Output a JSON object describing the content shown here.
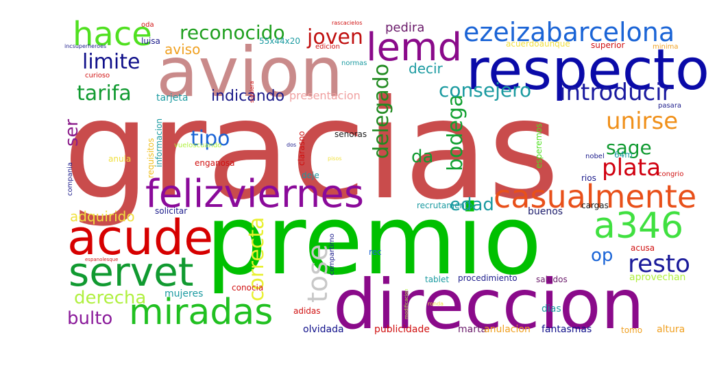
{
  "words": [
    {
      "text": "gracias",
      "color": "#c94c4c"
    },
    {
      "text": "premio",
      "color": "#00c000"
    },
    {
      "text": "avion",
      "color": "#c98a8a"
    },
    {
      "text": "direccion",
      "color": "#8a0a8a"
    },
    {
      "text": "respecto",
      "color": "#0a0aa8"
    },
    {
      "text": "acude",
      "color": "#d60000"
    },
    {
      "text": "felizviernes",
      "color": "#8a0a9a"
    },
    {
      "text": "casualmente",
      "color": "#e8501a"
    },
    {
      "text": "servet",
      "color": "#109a30"
    },
    {
      "text": "miradas",
      "color": "#20c020"
    },
    {
      "text": "a346",
      "color": "#40e040"
    },
    {
      "text": "lemd",
      "color": "#8a0a8a"
    },
    {
      "text": "ezeizabarcelona",
      "color": "#1a64d6"
    },
    {
      "text": "hace",
      "color": "#50e020"
    },
    {
      "text": "introducir",
      "color": "#1a1aa0"
    },
    {
      "text": "reconocido",
      "color": "#20a020"
    },
    {
      "text": "delegado",
      "color": "#208a20"
    },
    {
      "text": "correcta",
      "color": "#e8f030"
    },
    {
      "text": "tose",
      "color": "#c8c8c8"
    },
    {
      "text": "resto",
      "color": "#1a1a9a"
    },
    {
      "text": "plata",
      "color": "#d00010"
    },
    {
      "text": "unirse",
      "color": "#f0901a"
    },
    {
      "text": "bodega",
      "color": "#10a030"
    },
    {
      "text": "consejero",
      "color": "#1a9aa0"
    },
    {
      "text": "tarifa",
      "color": "#109a30"
    },
    {
      "text": "limite",
      "color": "#10108a"
    },
    {
      "text": "tipo",
      "color": "#1a64d6"
    },
    {
      "text": "sage",
      "color": "#109a30"
    },
    {
      "text": "joven",
      "color": "#c01010"
    },
    {
      "text": "edad",
      "color": "#1a9aa0"
    },
    {
      "text": "bulto",
      "color": "#8a1a9a"
    },
    {
      "text": "derecha",
      "color": "#b0f040"
    },
    {
      "text": "indicando",
      "color": "#1a1a8a"
    },
    {
      "text": "op",
      "color": "#1a64d6"
    },
    {
      "text": "da",
      "color": "#109a30"
    },
    {
      "text": "ser",
      "color": "#8a1a8a"
    },
    {
      "text": "adquirido",
      "color": "#f0e040"
    },
    {
      "text": "aviso",
      "color": "#f0a020"
    },
    {
      "text": "decir",
      "color": "#1a9aa0"
    },
    {
      "text": "pedira",
      "color": "#6a1a6a"
    },
    {
      "text": "presentacion",
      "color": "#f0a0a0"
    },
    {
      "text": "tarjeta",
      "color": "#1a9aa0"
    },
    {
      "text": "mujeres",
      "color": "#1a9aa0"
    },
    {
      "text": "olvidada",
      "color": "#10108a"
    },
    {
      "text": "publicidade",
      "color": "#d01010"
    },
    {
      "text": "marta",
      "color": "#6a1a6a"
    },
    {
      "text": "anulacion",
      "color": "#f0a020"
    },
    {
      "text": "fantasmas",
      "color": "#10108a"
    },
    {
      "text": "altura",
      "color": "#f0a020"
    },
    {
      "text": "tomo",
      "color": "#f0a020"
    },
    {
      "text": "aprovechan",
      "color": "#b0f040"
    },
    {
      "text": "saludos",
      "color": "#6a1a6a"
    },
    {
      "text": "procedimiento",
      "color": "#1a1a8a"
    },
    {
      "text": "tablet",
      "color": "#1a9aa0"
    },
    {
      "text": "dias",
      "color": "#1a9aa0"
    },
    {
      "text": "acusa",
      "color": "#d01010"
    },
    {
      "text": "rec",
      "color": "#1a64d6"
    },
    {
      "text": "buenos",
      "color": "#1a1a6a"
    },
    {
      "text": "cargas",
      "color": "#1a1a1a"
    },
    {
      "text": "recrutamento",
      "color": "#1a9aa0"
    },
    {
      "text": "solicitar",
      "color": "#1a1a8a"
    },
    {
      "text": "conocia",
      "color": "#d01010"
    },
    {
      "text": "adidas",
      "color": "#d01010"
    },
    {
      "text": "deje",
      "color": "#1a9aa0"
    },
    {
      "text": "enganosa",
      "color": "#d01010"
    },
    {
      "text": "anula",
      "color": "#f0e040"
    },
    {
      "text": "senoras",
      "color": "#1a1a1a"
    },
    {
      "text": "vueloscuando",
      "color": "#b0f040"
    },
    {
      "text": "informacion",
      "color": "#1a9aa0"
    },
    {
      "text": "requisitos",
      "color": "#f0c020"
    },
    {
      "text": "compania",
      "color": "#1a1a8a"
    },
    {
      "text": "compartirno",
      "color": "#1a1a8a"
    },
    {
      "text": "esperemos",
      "color": "#50e020"
    },
    {
      "text": "clarasno",
      "color": "#d01010"
    },
    {
      "text": "64m",
      "color": "#1a9aa0"
    },
    {
      "text": "nobel",
      "color": "#1a1a8a"
    },
    {
      "text": "rios",
      "color": "#1a1a8a"
    },
    {
      "text": "congrio",
      "color": "#d01010"
    },
    {
      "text": "pasara",
      "color": "#1a1a8a"
    },
    {
      "text": "normas",
      "color": "#1a9aa0"
    },
    {
      "text": "curioso",
      "color": "#d01010"
    },
    {
      "text": "luisa",
      "color": "#1a1a8a"
    },
    {
      "text": "edicion",
      "color": "#d01010"
    },
    {
      "text": "55x44x20",
      "color": "#1a9aa0"
    },
    {
      "text": "acuerdoaunque",
      "color": "#f0e040"
    },
    {
      "text": "superior",
      "color": "#d01010"
    },
    {
      "text": "minima",
      "color": "#f0a020"
    },
    {
      "text": "oda",
      "color": "#d01010"
    },
    {
      "text": "incsuperheroes",
      "color": "#1a1a8a"
    },
    {
      "text": "rascacielos",
      "color": "#d01010"
    },
    {
      "text": "siguiera",
      "color": "#d01010"
    },
    {
      "text": "dos",
      "color": "#1a1a8a"
    },
    {
      "text": "pisos",
      "color": "#f0e040"
    },
    {
      "text": "espanolesque",
      "color": "#d01010"
    },
    {
      "text": "modificacion",
      "color": "#b0f040"
    },
    {
      "text": "ronda",
      "color": "#f0e040"
    }
  ]
}
